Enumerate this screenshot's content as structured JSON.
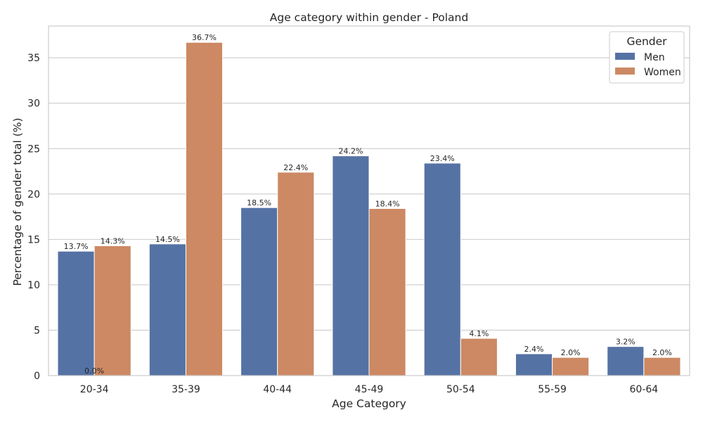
{
  "chart_data": {
    "type": "bar",
    "title": "Age category within gender - Poland",
    "xlabel": "Age Category",
    "ylabel": "Percentage of gender total (%)",
    "categories": [
      "20-34",
      "35-39",
      "40-44",
      "45-49",
      "50-54",
      "55-59",
      "60-64"
    ],
    "series": [
      {
        "name": "Men",
        "color": "#5572a4",
        "values": [
          13.7,
          14.5,
          18.5,
          24.2,
          23.4,
          2.4,
          3.2
        ],
        "labels": [
          "13.7%",
          "14.5%",
          "18.5%",
          "24.2%",
          "23.4%",
          "2.4%",
          "3.2%"
        ]
      },
      {
        "name": "Women",
        "color": "#cc8963",
        "values": [
          14.3,
          36.7,
          22.4,
          18.4,
          4.1,
          2.0,
          2.0
        ],
        "labels": [
          "14.3%",
          "36.7%",
          "22.4%",
          "18.4%",
          "4.1%",
          "2.0%",
          "2.0%"
        ]
      }
    ],
    "extra_labels": [
      {
        "category": "20-34",
        "value": 0.0,
        "text": "0.0%"
      }
    ],
    "ylim": [
      0,
      38.5
    ],
    "yticks": [
      0,
      5,
      10,
      15,
      20,
      25,
      30,
      35
    ],
    "grid": "horizontal",
    "legend": {
      "title": "Gender",
      "placement": "top-right"
    }
  }
}
